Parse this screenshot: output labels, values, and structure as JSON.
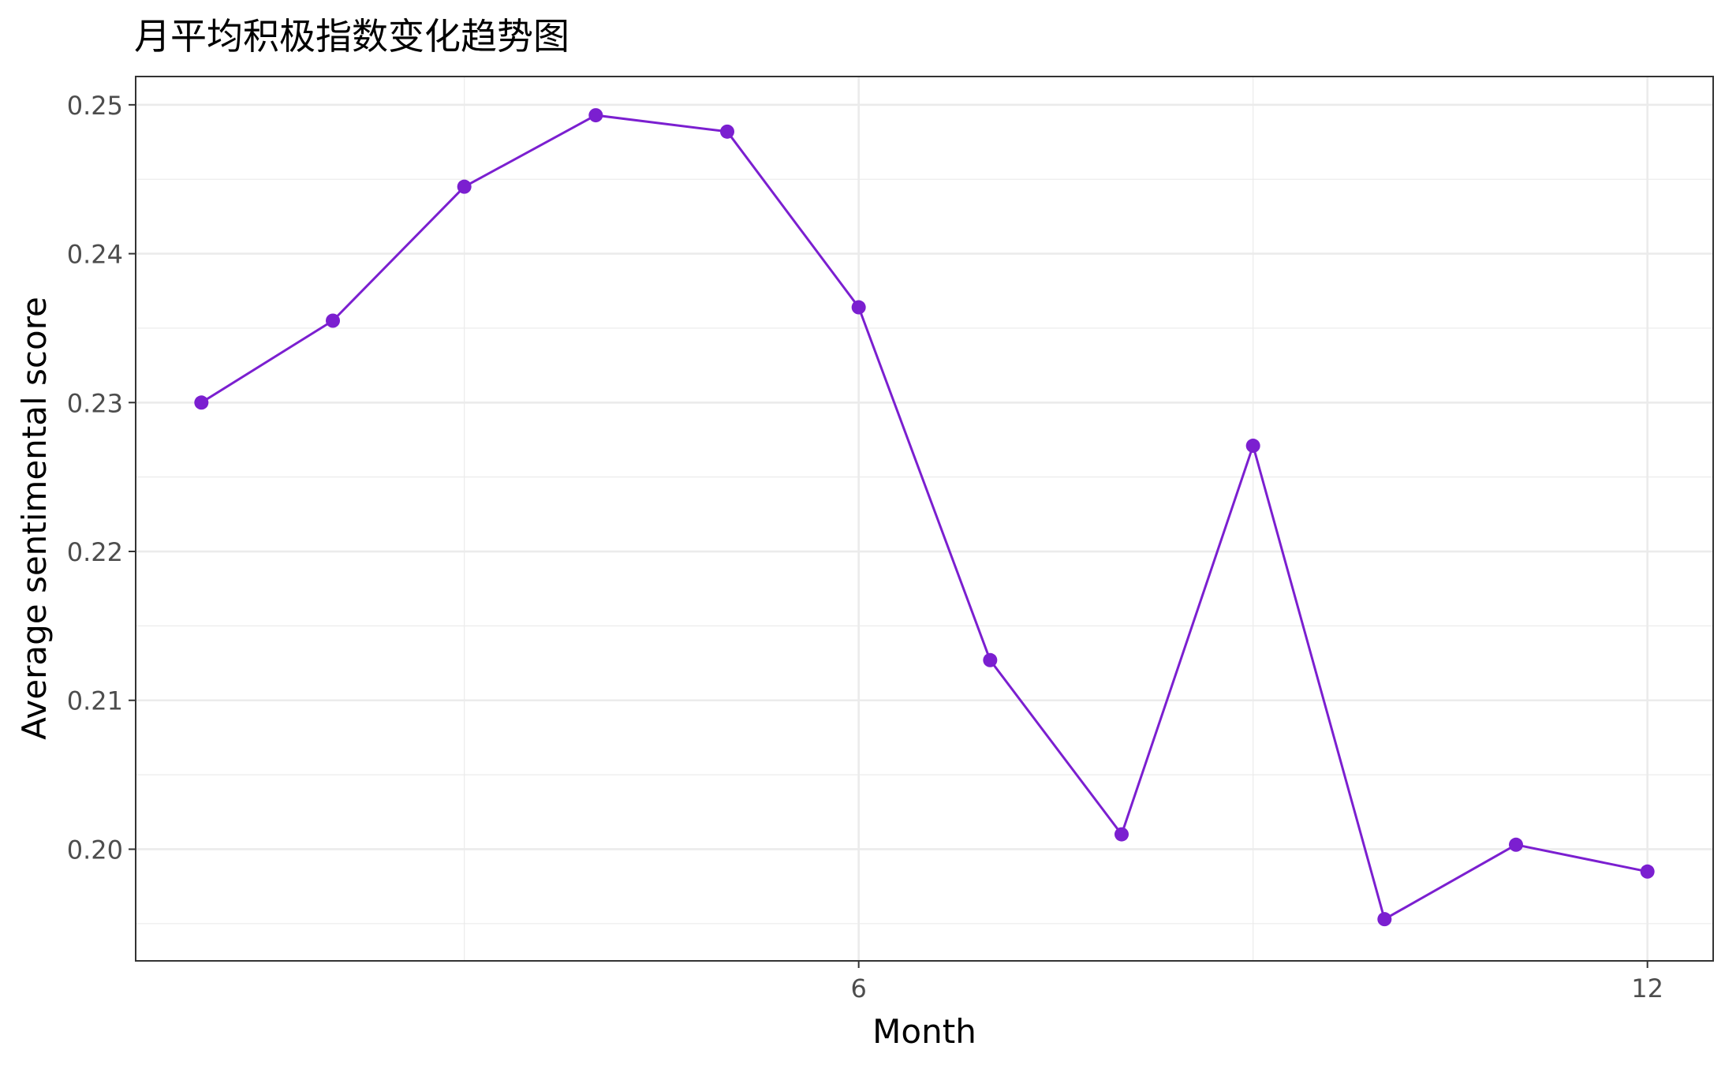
{
  "chart_data": {
    "type": "line",
    "title": "月平均积极指数变化趋势图",
    "xlabel": "Month",
    "ylabel": "Average sentimental score",
    "x": [
      1,
      2,
      3,
      4,
      5,
      6,
      7,
      8,
      9,
      10,
      11,
      12
    ],
    "y": [
      0.23,
      0.2355,
      0.2445,
      0.2493,
      0.2482,
      0.2364,
      0.2127,
      0.201,
      0.2271,
      0.1953,
      0.2003,
      0.1985
    ],
    "xlim": [
      0.5,
      12.5
    ],
    "ylim": [
      0.1925,
      0.2519
    ],
    "x_ticks": [
      6,
      12
    ],
    "x_tick_labels": [
      "6",
      "12"
    ],
    "x_minor_ticks": [
      3,
      9
    ],
    "y_ticks": [
      0.2,
      0.21,
      0.22,
      0.23,
      0.24,
      0.25
    ],
    "y_tick_labels": [
      "0.20",
      "0.21",
      "0.22",
      "0.23",
      "0.24",
      "0.25"
    ],
    "grid": true,
    "legend": "none",
    "colors": {
      "series": "#7b1fd0",
      "grid": "#ebebeb",
      "panel_border": "#333333",
      "tick_label": "#4d4d4d",
      "text": "#000000"
    }
  }
}
